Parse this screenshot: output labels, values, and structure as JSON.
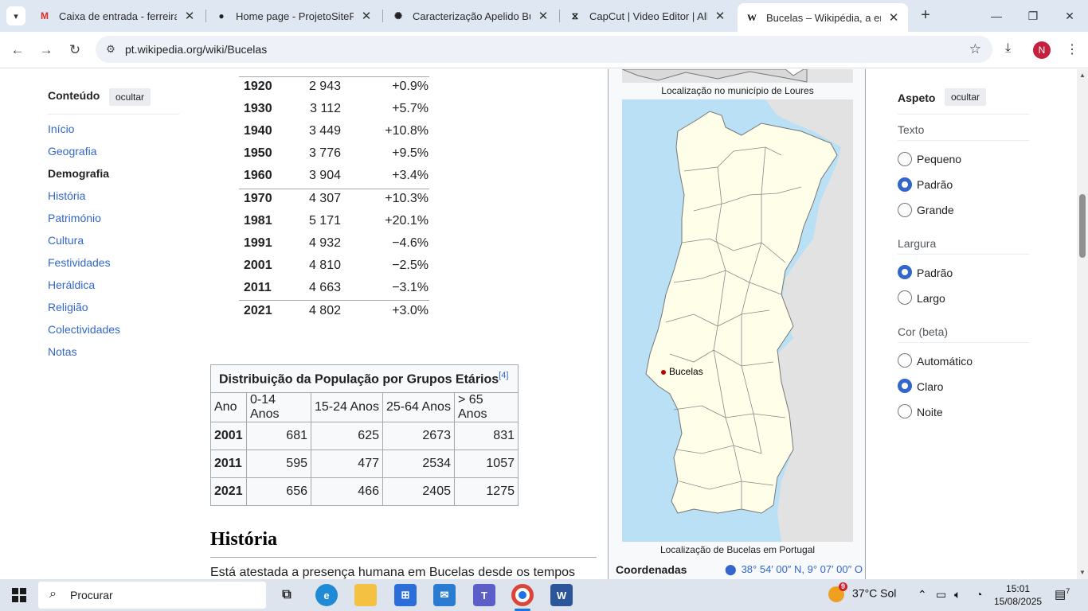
{
  "browser": {
    "tabs": [
      {
        "title": "Caixa de entrada - ferreirarib",
        "icon": "gmail-icon"
      },
      {
        "title": "Home page - ProjetoSiteProj",
        "icon": "github-icon"
      },
      {
        "title": "Caracterização Apelido Bucel",
        "icon": "openai-icon"
      },
      {
        "title": "CapCut | Video Editor | All-In",
        "icon": "capcut-icon"
      },
      {
        "title": "Bucelas – Wikipédia, a encicl",
        "icon": "wikipedia-icon"
      }
    ],
    "url": "pt.wikipedia.org/wiki/Bucelas",
    "profile_initial": "N"
  },
  "toc": {
    "title": "Conteúdo",
    "hide_label": "ocultar",
    "items": [
      "Início",
      "Geografia",
      "Demografia",
      "História",
      "Património",
      "Cultura",
      "Festividades",
      "Heráldica",
      "Religião",
      "Colectividades",
      "Notas"
    ],
    "current": "Demografia"
  },
  "population": [
    {
      "year": "1920",
      "pop": "2 943",
      "change": "+0.9%"
    },
    {
      "year": "1930",
      "pop": "3 112",
      "change": "+5.7%"
    },
    {
      "year": "1940",
      "pop": "3 449",
      "change": "+10.8%"
    },
    {
      "year": "1950",
      "pop": "3 776",
      "change": "+9.5%"
    },
    {
      "year": "1960",
      "pop": "3 904",
      "change": "+3.4%"
    },
    {
      "year": "1970",
      "pop": "4 307",
      "change": "+10.3%"
    },
    {
      "year": "1981",
      "pop": "5 171",
      "change": "+20.1%"
    },
    {
      "year": "1991",
      "pop": "4 932",
      "change": "−4.6%"
    },
    {
      "year": "2001",
      "pop": "4 810",
      "change": "−2.5%"
    },
    {
      "year": "2011",
      "pop": "4 663",
      "change": "−3.1%"
    },
    {
      "year": "2021",
      "pop": "4 802",
      "change": "+3.0%"
    }
  ],
  "age_table": {
    "caption": "Distribuição da População por Grupos Etários",
    "ref": "[4]",
    "headers": [
      "Ano",
      "0-14 Anos",
      "15-24 Anos",
      "25-64 Anos",
      "> 65 Anos"
    ],
    "rows": [
      [
        "2001",
        "681",
        "625",
        "2673",
        "831"
      ],
      [
        "2011",
        "595",
        "477",
        "2534",
        "1057"
      ],
      [
        "2021",
        "656",
        "466",
        "2405",
        "1275"
      ]
    ]
  },
  "history": {
    "heading": "História",
    "text": "Está atestada a presença humana em Bucelas desde os tempos"
  },
  "infobox": {
    "caption_loures": "Localização no município de Loures",
    "caption_portugal": "Localização de Bucelas em Portugal",
    "marker_label": "Bucelas",
    "coord_label": "Coordenadas",
    "coord_value": "38° 54′ 00″ N, 9° 07′ 00″ O"
  },
  "appearance": {
    "title": "Aspeto",
    "hide_label": "ocultar",
    "text_label": "Texto",
    "text_options": [
      "Pequeno",
      "Padrão",
      "Grande"
    ],
    "text_selected": "Padrão",
    "width_label": "Largura",
    "width_options": [
      "Padrão",
      "Largo"
    ],
    "width_selected": "Padrão",
    "color_label": "Cor (beta)",
    "color_options": [
      "Automático",
      "Claro",
      "Noite"
    ],
    "color_selected": "Claro"
  },
  "taskbar": {
    "search_placeholder": "Procurar",
    "weather": "37°C  Sol",
    "weather_badge": "9",
    "time": "15:01",
    "date": "15/08/2025",
    "notif_count": "7"
  }
}
